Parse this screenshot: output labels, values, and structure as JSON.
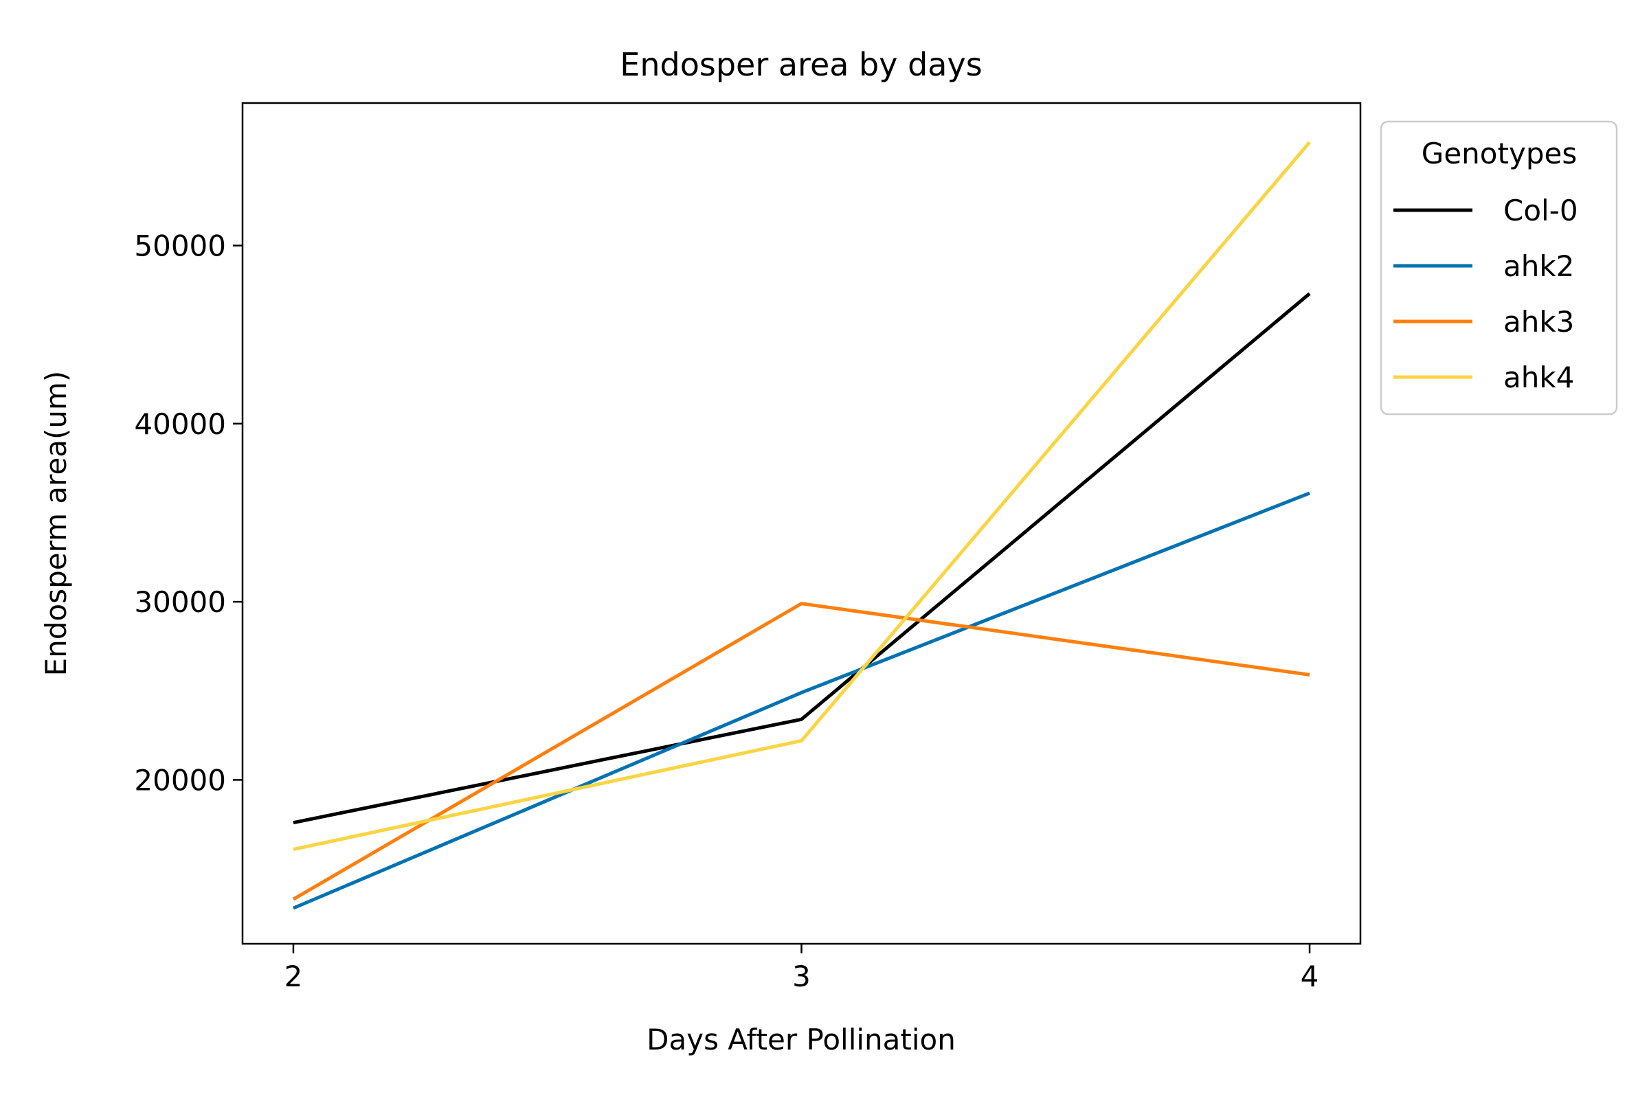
{
  "chart_data": {
    "type": "line",
    "title": "Endosper area by days",
    "xlabel": "Days After Pollination",
    "ylabel": "Endosperm area(um)",
    "x": [
      2,
      3,
      4
    ],
    "xticks": [
      "2",
      "3",
      "4"
    ],
    "xlim": [
      1.9,
      4.1
    ],
    "ylim": [
      10800,
      58000
    ],
    "yticks": [
      20000,
      30000,
      40000,
      50000
    ],
    "ytick_labels": [
      "20000",
      "30000",
      "40000",
      "50000"
    ],
    "grid": false,
    "legend": {
      "title": "Genotypes",
      "placement": "outside top-right"
    },
    "series": [
      {
        "name": "Col-0",
        "color": "#000000",
        "values": [
          17600,
          23400,
          47300
        ]
      },
      {
        "name": "ahk2",
        "color": "#0072b2",
        "values": [
          12800,
          24900,
          36100
        ]
      },
      {
        "name": "ahk3",
        "color": "#ff7f0e",
        "values": [
          13300,
          29900,
          25900
        ]
      },
      {
        "name": "ahk4",
        "color": "#fad443",
        "values": [
          16100,
          22200,
          55800
        ]
      }
    ]
  }
}
